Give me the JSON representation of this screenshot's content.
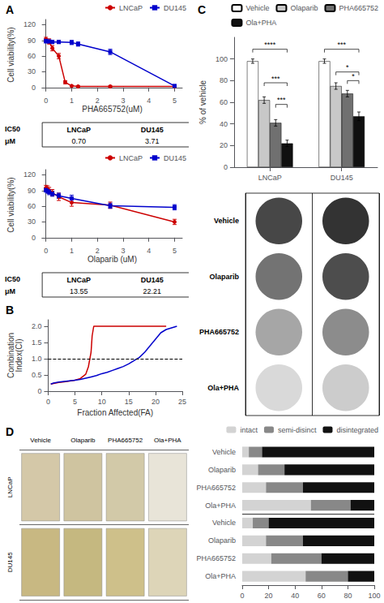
{
  "chart_data": [
    {
      "type": "line",
      "title": "A",
      "xlabel": "PHA665752(uM)",
      "ylabel": "Cell viability(%)",
      "xlim": [
        -0.15,
        5.3
      ],
      "ylim": [
        -5,
        130
      ],
      "xticks": [
        0,
        1,
        2,
        3,
        4,
        5
      ],
      "yticks": [
        0,
        30,
        60,
        90,
        120
      ],
      "grid": false,
      "legend": "upper right",
      "series": [
        {
          "name": "LNCaP",
          "color": "#cc0000",
          "marker": "circle",
          "x": [
            0,
            0.125,
            0.25,
            0.5,
            0.75,
            1.0,
            1.25,
            2.5,
            5.0
          ],
          "values": [
            92,
            88,
            75,
            60,
            10,
            3,
            2,
            2,
            2
          ],
          "errors": [
            4,
            5,
            5,
            5,
            3,
            1,
            1,
            1,
            1
          ]
        },
        {
          "name": "DU145",
          "color": "#0000cc",
          "marker": "square",
          "x": [
            0,
            0.125,
            0.25,
            0.5,
            1.0,
            1.25,
            2.5,
            5.0
          ],
          "values": [
            89,
            88,
            87,
            87,
            86,
            83,
            68,
            3
          ],
          "errors": [
            4,
            3,
            3,
            3,
            4,
            4,
            5,
            2
          ]
        }
      ],
      "table": {
        "header": [
          "IC50",
          "μM"
        ],
        "columns": [
          "LNCaP",
          "DU145"
        ],
        "values": [
          "0.70",
          "3.71"
        ]
      }
    },
    {
      "type": "line",
      "xlabel": "Olaparib (uM)",
      "ylabel": "Cell viability(%)",
      "xlim": [
        -0.15,
        5.3
      ],
      "ylim": [
        -5,
        130
      ],
      "xticks": [
        0,
        1,
        2,
        3,
        4,
        5
      ],
      "yticks": [
        0,
        30,
        60,
        90,
        120
      ],
      "grid": false,
      "legend": "upper right",
      "series": [
        {
          "name": "LNCaP",
          "color": "#cc0000",
          "marker": "circle",
          "x": [
            0,
            0.0625,
            0.125,
            0.25,
            0.5,
            1.0,
            2.5,
            5.0
          ],
          "values": [
            95,
            93,
            90,
            86,
            78,
            67,
            62,
            30
          ],
          "errors": [
            5,
            6,
            6,
            6,
            7,
            7,
            6,
            5
          ]
        },
        {
          "name": "DU145",
          "color": "#0000cc",
          "marker": "square",
          "x": [
            0,
            0.0625,
            0.125,
            0.25,
            0.5,
            1.0,
            2.5,
            5.0
          ],
          "values": [
            91,
            89,
            87,
            84,
            80,
            75,
            61,
            58
          ],
          "errors": [
            4,
            4,
            5,
            5,
            5,
            6,
            5,
            5
          ]
        }
      ],
      "table": {
        "header": [
          "IC50",
          "μM"
        ],
        "columns": [
          "LNCaP",
          "DU145"
        ],
        "values": [
          "13.55",
          "22.21"
        ]
      }
    },
    {
      "type": "line",
      "title": "B",
      "xlabel": "Fraction Affected(FA)",
      "ylabel": "Combination\nIndex(CI)",
      "xlim": [
        0,
        25
      ],
      "ylim": [
        0,
        2.2
      ],
      "xticks": [
        0,
        5,
        10,
        15,
        20,
        25
      ],
      "yticks": [
        0,
        0.5,
        {
          "value": 1,
          "label": "1.0"
        },
        1.5,
        {
          "value": 2,
          "label": "2.0"
        }
      ],
      "grid": false,
      "series": [
        {
          "color": "#cc0000",
          "x": [
            0.5,
            1,
            2,
            3,
            4,
            5,
            6,
            7,
            7.5,
            8,
            8.2,
            8.5,
            8.8,
            9.5,
            12,
            15,
            18,
            22
          ],
          "values": [
            0.22,
            0.24,
            0.27,
            0.29,
            0.31,
            0.34,
            0.39,
            0.52,
            0.75,
            1.2,
            1.7,
            2.0,
            2.0,
            2.0,
            2.0,
            2.0,
            2.0,
            2.0
          ]
        },
        {
          "color": "#0000cc",
          "x": [
            0.5,
            1,
            2,
            3,
            4,
            5,
            6,
            7,
            8,
            9,
            10,
            11,
            12,
            13,
            14,
            15,
            16,
            17,
            18,
            19,
            20,
            21,
            22,
            23,
            24
          ],
          "values": [
            0.22,
            0.25,
            0.28,
            0.3,
            0.32,
            0.34,
            0.36,
            0.4,
            0.44,
            0.48,
            0.54,
            0.58,
            0.64,
            0.7,
            0.76,
            0.84,
            0.94,
            1.04,
            1.2,
            1.4,
            1.6,
            1.8,
            1.9,
            1.95,
            2.0
          ]
        }
      ],
      "reference_lines": [
        {
          "y": 1,
          "color": "#000000",
          "line_style": "dashed"
        }
      ]
    },
    {
      "type": "bar",
      "title": "C",
      "ylabel": "% of vehicle",
      "categories": [
        "LNCaP",
        "DU145"
      ],
      "ylim": [
        0,
        120
      ],
      "yticks": [
        0,
        20,
        40,
        60,
        80,
        100
      ],
      "grid": false,
      "legend": "upper right",
      "series": [
        {
          "name": "Vehicle",
          "color": "#ffffff",
          "values": [
            98,
            98
          ],
          "errors": [
            2,
            2
          ]
        },
        {
          "name": "Olaparib",
          "color": "#c8c8c8",
          "values": [
            62,
            75
          ],
          "errors": [
            3,
            3
          ]
        },
        {
          "name": "PHA665752",
          "color": "#707070",
          "values": [
            41,
            68
          ],
          "errors": [
            3,
            3
          ]
        },
        {
          "name": "Ola+PHA",
          "color": "#101010",
          "values": [
            22,
            47
          ],
          "errors": [
            3,
            4
          ]
        }
      ],
      "brackets": [
        {
          "category": "LNCaP",
          "from": "Vehicle",
          "to": "Ola+PHA",
          "y": 109,
          "text": "****"
        },
        {
          "category": "LNCaP",
          "from": "Olaparib",
          "to": "Ola+PHA",
          "y": 78,
          "text": "***"
        },
        {
          "category": "LNCaP",
          "from": "PHA665752",
          "to": "Ola+PHA",
          "y": 58,
          "text": "***"
        },
        {
          "category": "DU145",
          "from": "Vehicle",
          "to": "Ola+PHA",
          "y": 109,
          "text": "***"
        },
        {
          "category": "DU145",
          "from": "Olaparib",
          "to": "Ola+PHA",
          "y": 88,
          "text": "*"
        },
        {
          "category": "DU145",
          "from": "PHA665752",
          "to": "Ola+PHA",
          "y": 80,
          "text": "*"
        }
      ]
    },
    {
      "type": "dots",
      "categories": [
        "Vehicle",
        "Olaparib",
        "PHA665752",
        "Ola+PHA"
      ],
      "series": [
        {
          "values": [
            0.28,
            0.45,
            0.65,
            0.85
          ]
        },
        {
          "values": [
            0.2,
            0.3,
            0.55,
            0.8
          ]
        }
      ]
    },
    {
      "type": "tiles",
      "title": "D",
      "categories": [
        "Vehicle",
        "Olaparib",
        "PHA665752",
        "Ola+PHA"
      ],
      "rows": [
        "LNCaP",
        "DU145"
      ],
      "colors": [
        [
          "#d4c8a8",
          "#cfc4a0",
          "#d2c9a8",
          "#e8e4d8"
        ],
        [
          "#c8b882",
          "#c5b880",
          "#cec08a",
          "#ddd5b8"
        ]
      ]
    },
    {
      "type": "bar",
      "orientation": "horizontal",
      "stacked": true,
      "categories": [
        "Vehicle",
        "Olaparib",
        "PHA665752",
        "Ola+PHA",
        "Vehicle",
        "Olaparib",
        "PHA665752",
        "Ola+PHA"
      ],
      "xlim": [
        0,
        100
      ],
      "xticks": [
        0,
        20,
        40,
        60,
        80,
        100
      ],
      "grid": false,
      "legend": "upper right",
      "series": [
        {
          "name": "intact",
          "color": "#d3d3d3",
          "values": [
            5,
            12,
            18,
            52,
            8,
            18,
            22,
            48
          ]
        },
        {
          "name": "semi-disinct",
          "color": "#888888",
          "values": [
            10,
            20,
            28,
            30,
            12,
            28,
            38,
            32
          ]
        },
        {
          "name": "disintegrated",
          "color": "#111111",
          "values": [
            85,
            68,
            54,
            18,
            80,
            54,
            40,
            20
          ]
        }
      ]
    }
  ]
}
